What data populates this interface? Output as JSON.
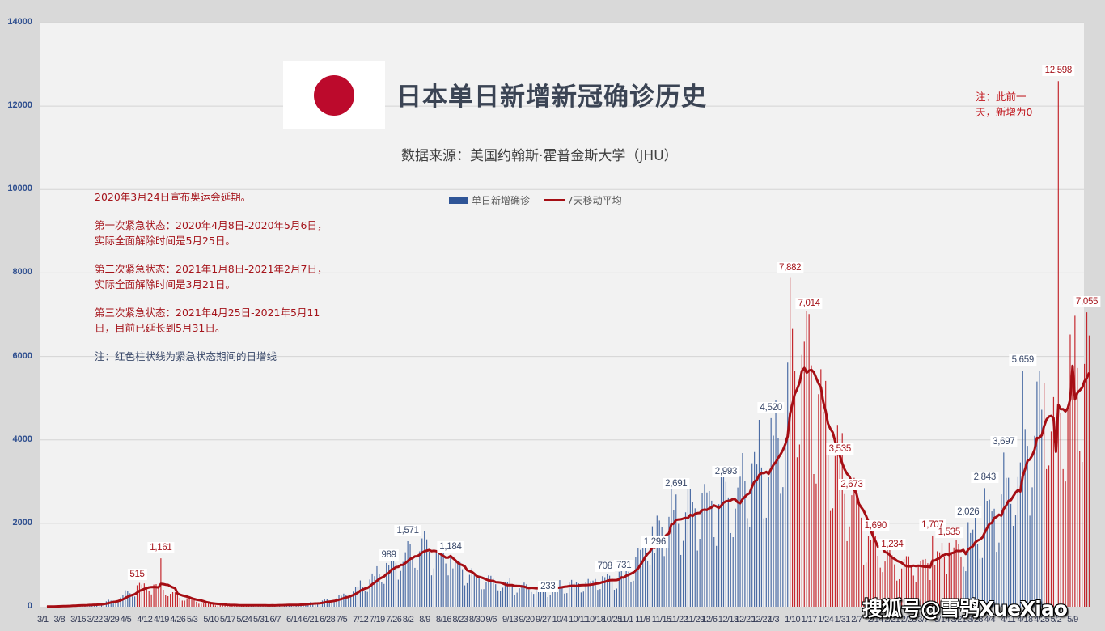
{
  "header": {
    "title": "日本单日新增新冠确诊历史",
    "subtitle": "数据来源：美国约翰斯·霍普金斯大学（JHU）",
    "flag_icon": "japan-flag-icon"
  },
  "legend": {
    "bar_label": "单日新增确诊",
    "line_label": "7天移动平均",
    "bar_color": "#2f5597",
    "line_color": "#a50e14",
    "emergency_bar_color": "#c0141b"
  },
  "notes": {
    "olympics": "2020年3月24日宣布奥运会延期。",
    "first": "第一次紧急状态：2020年4月8日-2020年5月6日，实际全面解除时间是5月25日。",
    "second": "第二次紧急状态：2021年1月8日-2021年2月7日，实际全面解除时间是3月21日。",
    "third": "第三次紧急状态：2021年4月25日-2021年5月11日，目前已延长到5月31日。",
    "legend_note": "注：红色柱状线为紧急状态期间的日增线"
  },
  "side_note": {
    "line1": "注：此前一",
    "line2": "天，新增为0"
  },
  "watermark": "搜狐号@雪鸮XueXiao",
  "chart_data": {
    "type": "bar",
    "title": "日本单日新增新冠确诊历史",
    "subtitle": "数据来源：美国约翰斯·霍普金斯大学（JHU）",
    "xlabel": "",
    "ylabel": "",
    "ylim": [
      0,
      14000
    ],
    "yticks": [
      0,
      2000,
      4000,
      6000,
      8000,
      10000,
      12000,
      14000
    ],
    "grid": true,
    "legend_position": "top-center",
    "start_date": "2020-03-01",
    "x_tick_labels": [
      "3/1",
      "3/8",
      "3/15",
      "3/22",
      "3/29",
      "4/5",
      "4/12",
      "4/19",
      "4/26",
      "5/3",
      "5/10",
      "5/17",
      "5/24",
      "5/31",
      "6/7",
      "6/14",
      "6/21",
      "6/28",
      "7/5",
      "7/12",
      "7/19",
      "7/26",
      "8/2",
      "8/9",
      "8/16",
      "8/23",
      "8/30",
      "9/6",
      "9/13",
      "9/20",
      "9/27",
      "10/4",
      "10/11",
      "10/18",
      "10/25",
      "11/1",
      "11/8",
      "11/15",
      "11/22",
      "11/29",
      "12/6",
      "12/13",
      "12/20",
      "12/27",
      "1/3",
      "1/10",
      "1/17",
      "1/24",
      "1/31",
      "2/7",
      "2/14",
      "2/21",
      "2/28",
      "3/7",
      "3/14",
      "3/21",
      "3/28",
      "4/4",
      "4/11",
      "4/18",
      "4/25",
      "5/2",
      "5/9"
    ],
    "emergency_periods": [
      {
        "start": "2020-04-08",
        "end": "2020-05-25"
      },
      {
        "start": "2021-01-08",
        "end": "2021-03-21"
      },
      {
        "start": "2021-04-25",
        "end": "2021-05-14"
      }
    ],
    "weekly_anchor_values": [
      5,
      20,
      40,
      60,
      150,
      350,
      520,
      420,
      250,
      120,
      60,
      30,
      40,
      30,
      40,
      50,
      90,
      150,
      300,
      550,
      800,
      1100,
      1400,
      1350,
      1050,
      800,
      650,
      550,
      500,
      480,
      450,
      500,
      560,
      620,
      700,
      900,
      1400,
      2100,
      2100,
      2300,
      2500,
      2600,
      2800,
      3500,
      3700,
      6000,
      5800,
      4200,
      3000,
      1900,
      1300,
      1100,
      1000,
      1100,
      1200,
      1300,
      1700,
      2200,
      2900,
      3800,
      4700,
      4400,
      5600
    ],
    "series": [
      {
        "name": "单日新增确诊",
        "type": "bar"
      },
      {
        "name": "7天移动平均",
        "type": "line"
      }
    ],
    "annotations": [
      {
        "date": "2020-04-08",
        "value": 515,
        "label": "515"
      },
      {
        "date": "2020-04-18",
        "value": 1161,
        "label": "1,161"
      },
      {
        "date": "2020-07-23",
        "value": 989,
        "label": "989"
      },
      {
        "date": "2020-07-31",
        "value": 1571,
        "label": "1,571"
      },
      {
        "date": "2020-08-18",
        "value": 1184,
        "label": "1,184"
      },
      {
        "date": "2020-09-28",
        "value": 233,
        "label": "233"
      },
      {
        "date": "2020-10-22",
        "value": 708,
        "label": "708"
      },
      {
        "date": "2020-10-30",
        "value": 731,
        "label": "731"
      },
      {
        "date": "2020-11-12",
        "value": 1296,
        "label": "1,296"
      },
      {
        "date": "2020-11-21",
        "value": 2691,
        "label": "2,691"
      },
      {
        "date": "2020-12-12",
        "value": 2993,
        "label": "2,993"
      },
      {
        "date": "2020-12-31",
        "value": 4520,
        "label": "4,520"
      },
      {
        "date": "2021-01-08",
        "value": 7882,
        "label": "7,882"
      },
      {
        "date": "2021-01-16",
        "value": 7014,
        "label": "7,014"
      },
      {
        "date": "2021-01-29",
        "value": 3535,
        "label": "3,535"
      },
      {
        "date": "2021-02-03",
        "value": 2673,
        "label": "2,673"
      },
      {
        "date": "2021-02-13",
        "value": 1690,
        "label": "1,690"
      },
      {
        "date": "2021-02-20",
        "value": 1234,
        "label": "1,234"
      },
      {
        "date": "2021-03-09",
        "value": 1707,
        "label": "1,707"
      },
      {
        "date": "2021-03-16",
        "value": 1535,
        "label": "1,535"
      },
      {
        "date": "2021-03-24",
        "value": 2026,
        "label": "2,026"
      },
      {
        "date": "2021-03-31",
        "value": 2843,
        "label": "2,843"
      },
      {
        "date": "2021-04-08",
        "value": 3697,
        "label": "3,697"
      },
      {
        "date": "2021-04-16",
        "value": 5659,
        "label": "5,659"
      },
      {
        "date": "2021-05-01",
        "value": 12598,
        "label": "12,598"
      },
      {
        "date": "2021-05-13",
        "value": 7055,
        "label": "7,055"
      }
    ]
  }
}
